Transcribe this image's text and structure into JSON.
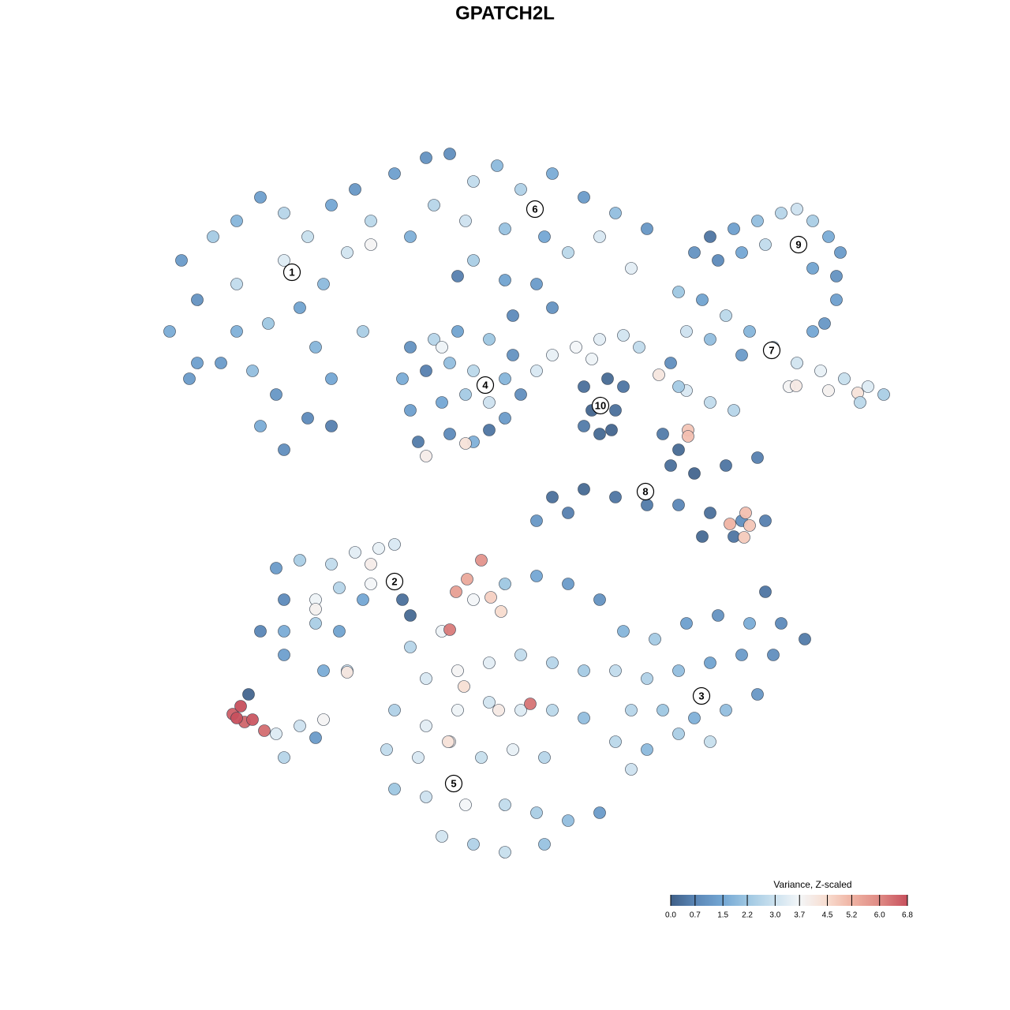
{
  "chart_data": {
    "type": "scatter",
    "title": "GPATCH2L",
    "xlim": [
      0,
      1280
    ],
    "ylim": [
      0,
      1280
    ],
    "x": [
      230,
      250,
      215,
      270,
      300,
      330,
      360,
      390,
      420,
      450,
      470,
      440,
      410,
      380,
      340,
      300,
      280,
      320,
      350,
      330,
      360,
      390,
      420,
      460,
      250,
      300,
      360,
      470,
      400,
      240,
      420,
      500,
      540,
      570,
      600,
      630,
      660,
      700,
      740,
      780,
      820,
      550,
      590,
      640,
      690,
      720,
      760,
      800,
      520,
      600,
      680,
      700,
      650,
      580,
      640,
      520,
      550,
      580,
      620,
      650,
      510,
      540,
      570,
      600,
      640,
      660,
      520,
      560,
      590,
      620,
      640,
      530,
      570,
      600,
      620,
      540,
      590,
      560,
      740,
      770,
      790,
      750,
      780,
      760,
      740,
      775,
      680,
      700,
      730,
      760,
      790,
      810,
      750,
      835,
      860,
      890,
      920,
      950,
      980,
      1010,
      1040,
      1070,
      1100,
      1120,
      870,
      900,
      940,
      1000,
      1050,
      1087,
      1009,
      870,
      900,
      930,
      1090,
      1030,
      850,
      860,
      880,
      900,
      930,
      960,
      990,
      1010,
      1030,
      1050,
      1065,
      1060,
      1060,
      970,
      940,
      910,
      1030,
      1045,
      840,
      860,
      850,
      880,
      920,
      960,
      700,
      740,
      780,
      820,
      860,
      900,
      940,
      970,
      890,
      930,
      680,
      720,
      872,
      872,
      925,
      945,
      950,
      943,
      350,
      380,
      420,
      450,
      480,
      500,
      470,
      360,
      400,
      430,
      460,
      330,
      360,
      400,
      430,
      360,
      410,
      440,
      510,
      520,
      500,
      470,
      400,
      440,
      790,
      830,
      870,
      910,
      950,
      990,
      1020,
      780,
      820,
      860,
      900,
      940,
      980,
      800,
      840,
      880,
      920,
      960,
      780,
      820,
      860,
      900,
      800,
      970,
      520,
      560,
      600,
      640,
      680,
      720,
      760,
      540,
      580,
      620,
      660,
      700,
      740,
      500,
      540,
      580,
      620,
      660,
      700,
      740,
      490,
      530,
      570,
      610,
      650,
      690,
      500,
      540,
      590,
      640,
      680,
      720,
      760,
      560,
      600,
      640,
      690,
      610,
      592,
      578,
      570,
      672,
      622,
      635,
      588,
      632,
      568,
      295,
      305,
      310,
      320,
      335,
      300,
      315,
      350,
      380,
      410,
      360,
      400
    ],
    "y": [
      330,
      380,
      420,
      300,
      280,
      250,
      270,
      300,
      260,
      240,
      280,
      320,
      360,
      390,
      410,
      420,
      460,
      470,
      500,
      540,
      570,
      530,
      480,
      420,
      460,
      360,
      330,
      310,
      440,
      480,
      540,
      220,
      200,
      195,
      230,
      210,
      240,
      220,
      250,
      270,
      290,
      260,
      280,
      290,
      300,
      320,
      300,
      340,
      300,
      330,
      360,
      390,
      400,
      350,
      355,
      440,
      430,
      420,
      430,
      450,
      480,
      470,
      460,
      470,
      480,
      500,
      520,
      510,
      500,
      510,
      530,
      560,
      550,
      560,
      545,
      578,
      562,
      440,
      490,
      480,
      490,
      520,
      520,
      550,
      540,
      545,
      470,
      450,
      440,
      430,
      425,
      440,
      455,
      475,
      370,
      380,
      400,
      420,
      440,
      460,
      470,
      480,
      490,
      500,
      420,
      430,
      450,
      490,
      495,
      498,
      489,
      495,
      510,
      520,
      510,
      420,
      460,
      490,
      320,
      300,
      290,
      280,
      270,
      265,
      280,
      300,
      320,
      350,
      380,
      310,
      320,
      330,
      340,
      410,
      550,
      570,
      590,
      600,
      590,
      580,
      630,
      620,
      630,
      640,
      640,
      650,
      660,
      660,
      680,
      680,
      660,
      650,
      545,
      553,
      664,
      650,
      666,
      681,
      720,
      710,
      715,
      700,
      695,
      690,
      715,
      760,
      760,
      745,
      760,
      800,
      800,
      790,
      800,
      830,
      850,
      850,
      760,
      780,
      740,
      740,
      772,
      852,
      800,
      810,
      790,
      780,
      790,
      790,
      810,
      850,
      860,
      850,
      840,
      830,
      830,
      900,
      900,
      910,
      900,
      880,
      940,
      950,
      930,
      940,
      975,
      750,
      820,
      800,
      760,
      740,
      730,
      740,
      760,
      860,
      850,
      840,
      830,
      840,
      850,
      900,
      920,
      900,
      890,
      900,
      900,
      910,
      950,
      960,
      940,
      960,
      950,
      960,
      1000,
      1010,
      1020,
      1020,
      1030,
      1040,
      1030,
      1060,
      1070,
      1080,
      1070,
      710,
      734,
      750,
      798,
      892,
      757,
      775,
      870,
      900,
      940,
      905,
      895,
      915,
      912,
      926,
      910,
      880,
      930,
      920,
      912,
      960,
      935
    ],
    "values": [
      1.2,
      1.0,
      1.6,
      2.3,
      1.8,
      1.3,
      2.6,
      2.9,
      1.5,
      1.1,
      2.7,
      3.1,
      1.9,
      1.4,
      2.2,
      1.7,
      1.2,
      2.0,
      1.1,
      1.6,
      0.9,
      0.8,
      1.5,
      2.4,
      1.3,
      2.8,
      3.3,
      3.8,
      1.8,
      1.2,
      0.6,
      1.3,
      1.0,
      0.9,
      2.8,
      1.9,
      2.5,
      1.6,
      1.2,
      2.0,
      1.1,
      2.6,
      3.0,
      2.1,
      1.5,
      2.7,
      3.2,
      3.4,
      1.7,
      2.4,
      1.2,
      1.0,
      0.8,
      0.6,
      1.4,
      1.0,
      2.6,
      1.4,
      2.2,
      1.0,
      1.6,
      0.6,
      2.0,
      2.7,
      1.8,
      0.9,
      1.3,
      1.5,
      2.3,
      3.0,
      1.2,
      0.5,
      0.8,
      1.7,
      0.4,
      4.0,
      4.3,
      3.6,
      0.3,
      0.2,
      0.4,
      0.1,
      0.3,
      0.2,
      0.5,
      0.1,
      3.2,
      3.5,
      3.7,
      3.4,
      3.1,
      2.8,
      3.6,
      4.2,
      2.2,
      1.4,
      2.7,
      1.8,
      2.5,
      3.1,
      3.5,
      2.9,
      3.3,
      2.4,
      3.0,
      2.0,
      1.2,
      3.8,
      3.9,
      4.3,
      4.1,
      3.2,
      2.8,
      2.6,
      2.7,
      1.5,
      0.9,
      2.3,
      1.0,
      0.4,
      1.3,
      2.0,
      2.6,
      3.0,
      2.4,
      1.6,
      1.2,
      1.0,
      1.3,
      2.8,
      1.5,
      0.8,
      1.4,
      1.1,
      0.5,
      0.2,
      0.3,
      0.1,
      0.4,
      0.6,
      0.3,
      0.2,
      0.4,
      0.5,
      0.7,
      0.3,
      0.9,
      0.6,
      0.2,
      0.4,
      1.1,
      0.6,
      4.9,
      5.0,
      5.2,
      5.0,
      4.9,
      4.8,
      1.2,
      2.4,
      2.8,
      3.4,
      3.5,
      3.2,
      4.0,
      0.8,
      3.6,
      2.6,
      1.5,
      0.7,
      1.6,
      2.4,
      1.4,
      1.3,
      1.6,
      3.0,
      0.3,
      0.2,
      0.4,
      3.7,
      3.9,
      4.2,
      1.8,
      2.3,
      1.3,
      1.0,
      1.6,
      0.8,
      0.5,
      2.8,
      2.5,
      2.0,
      1.4,
      1.2,
      0.9,
      2.6,
      2.2,
      1.7,
      2.0,
      1.1,
      2.7,
      1.9,
      2.4,
      2.9,
      3.0,
      0.4,
      2.6,
      3.6,
      3.7,
      2.2,
      1.5,
      1.2,
      1.0,
      3.2,
      3.8,
      3.4,
      2.8,
      2.6,
      2.3,
      2.5,
      3.4,
      3.6,
      3.1,
      3.3,
      2.7,
      2.0,
      2.8,
      3.2,
      4.0,
      2.9,
      3.5,
      2.6,
      2.2,
      3.0,
      3.7,
      2.8,
      2.4,
      2.0,
      1.2,
      3.1,
      2.5,
      2.9,
      2.1,
      5.8,
      5.4,
      5.6,
      6.2,
      6.3,
      4.7,
      4.5,
      4.4,
      4.1,
      4.3,
      6.6,
      6.8,
      6.5,
      6.7,
      6.4,
      6.8,
      0.1,
      3.3,
      3.0,
      3.8,
      2.6,
      1.2
    ],
    "clusters": [
      {
        "label": "1",
        "x": 370,
        "y": 345
      },
      {
        "label": "2",
        "x": 500,
        "y": 737
      },
      {
        "label": "3",
        "x": 889,
        "y": 882
      },
      {
        "label": "4",
        "x": 615,
        "y": 488
      },
      {
        "label": "5",
        "x": 575,
        "y": 993
      },
      {
        "label": "6",
        "x": 678,
        "y": 265
      },
      {
        "label": "7",
        "x": 978,
        "y": 444
      },
      {
        "label": "8",
        "x": 818,
        "y": 623
      },
      {
        "label": "9",
        "x": 1012,
        "y": 310
      },
      {
        "label": "10",
        "x": 761,
        "y": 514
      }
    ],
    "colorbar": {
      "title": "Variance, Z-scaled",
      "clim": [
        0,
        6.8
      ],
      "ticks": [
        {
          "value": 0,
          "label": "0.0"
        },
        0.7,
        1.5,
        2.2,
        {
          "value": 3,
          "label": "3.0"
        },
        3.7,
        4.5,
        5.2,
        {
          "value": 6,
          "label": "6.0"
        },
        6.8
      ],
      "colors": [
        "#3f5f87",
        "#5a86b6",
        "#74a7d4",
        "#9ec7e2",
        "#cde2ef",
        "#f3f6f8",
        "#f8dccf",
        "#efb3a3",
        "#df8a84",
        "#c7505d"
      ]
    }
  }
}
